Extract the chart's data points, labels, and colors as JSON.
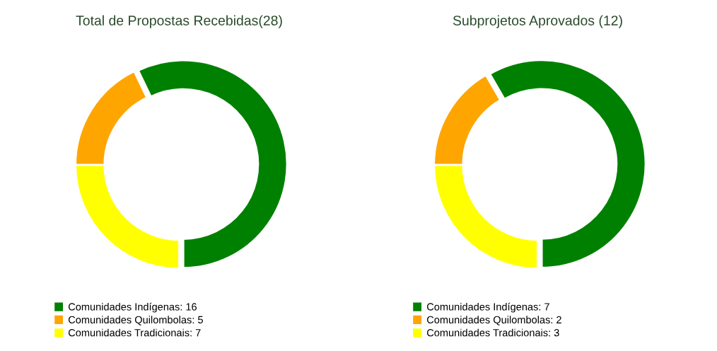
{
  "chart_data": [
    {
      "type": "donut",
      "title": "Total de Propostas Recebidas(28)",
      "categories": [
        "Comunidades Indígenas: 16",
        "Comunidades Quilombolas: 5",
        "Comunidades Tradicionais: 7"
      ],
      "values": [
        16,
        5,
        7
      ],
      "colors": [
        "#008000",
        "#ffa500",
        "#ffff00"
      ],
      "legend": "bottom left"
    },
    {
      "type": "donut",
      "title": "Subprojetos Aprovados (12)",
      "categories": [
        "Comunidades Indígenas: 7",
        "Comunidades Quilombolas: 2",
        "Comunidades Tradicionais: 3"
      ],
      "values": [
        7,
        2,
        3
      ],
      "colors": [
        "#008000",
        "#ffa500",
        "#ffff00"
      ],
      "legend": "bottom left"
    }
  ]
}
